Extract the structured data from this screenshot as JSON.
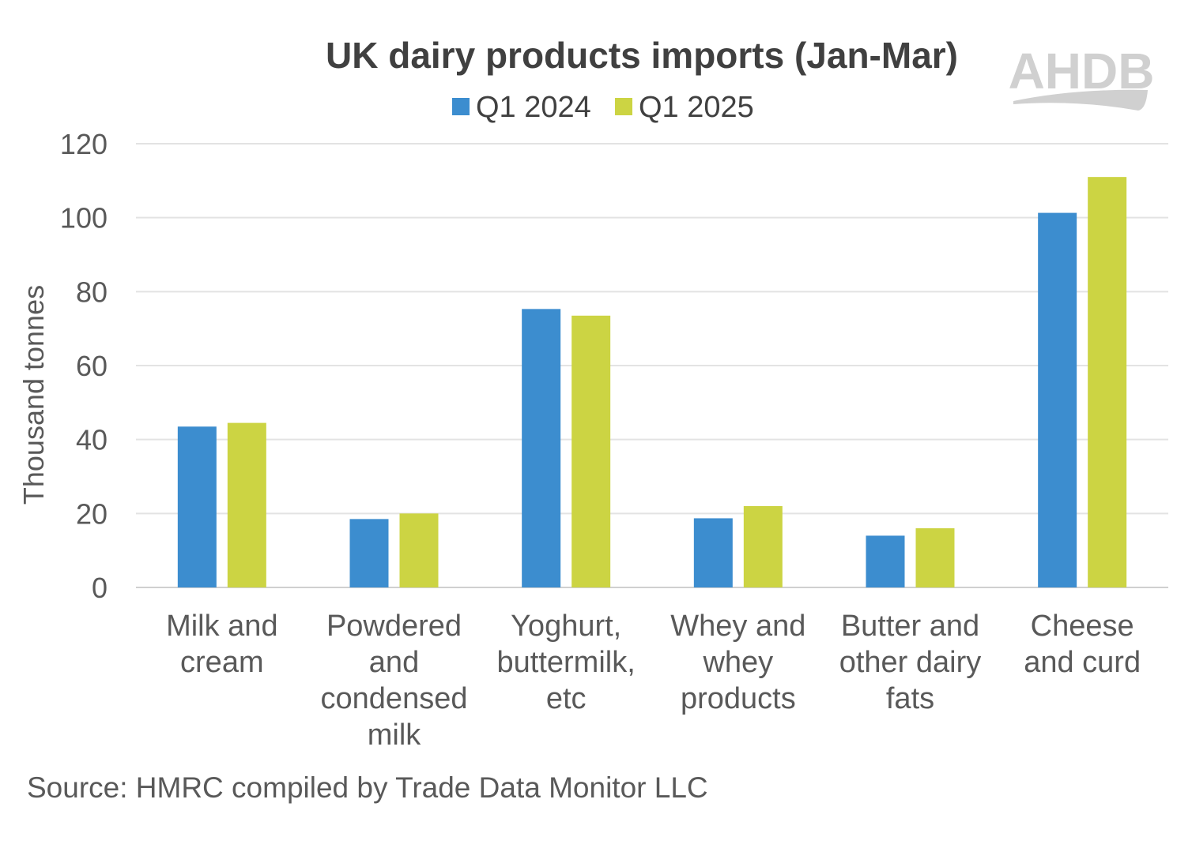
{
  "logo": {
    "text": "AHDB",
    "color": "#d0d0d0"
  },
  "source": "Source: HMRC compiled by Trade Data Monitor LLC",
  "chart_data": {
    "type": "bar",
    "title": "UK dairy products imports (Jan-Mar)",
    "xlabel": "",
    "ylabel": "Thousand tonnes",
    "ylim": [
      0,
      120
    ],
    "yticks": [
      0,
      20,
      40,
      60,
      80,
      100,
      120
    ],
    "grid": true,
    "legend_position": "top",
    "categories": [
      [
        "Milk and",
        "cream"
      ],
      [
        "Powdered",
        "and",
        "condensed",
        "milk"
      ],
      [
        "Yoghurt,",
        "buttermilk,",
        "etc"
      ],
      [
        "Whey and",
        "whey",
        "products"
      ],
      [
        "Butter and",
        "other dairy",
        "fats"
      ],
      [
        "Cheese",
        "and curd"
      ]
    ],
    "series": [
      {
        "name": "Q1 2024",
        "color": "#3c8dcf",
        "values": [
          43.5,
          18.5,
          75.3,
          18.7,
          14.0,
          101.3
        ]
      },
      {
        "name": "Q1 2025",
        "color": "#ccd443",
        "values": [
          44.5,
          20.0,
          73.5,
          22.0,
          16.0,
          111.0
        ]
      }
    ]
  }
}
